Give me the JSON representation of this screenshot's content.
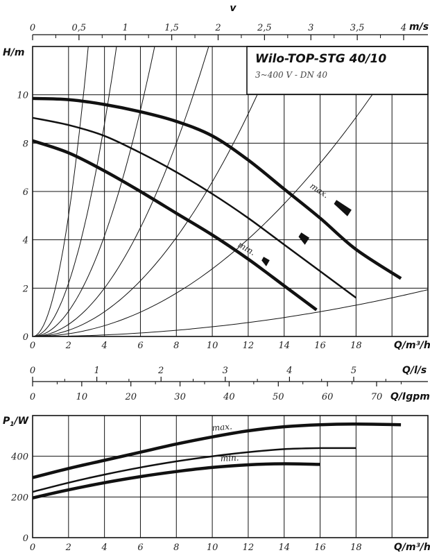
{
  "chart_data": [
    {
      "type": "line",
      "title": "Wilo-TOP-STG 40/10",
      "subtitle": "3~400 V - DN 40",
      "ylabel": "H/m",
      "xlabel": "Q/m³/h",
      "xlim": [
        0,
        22
      ],
      "ylim": [
        0,
        12
      ],
      "x_ticks": [
        "0",
        "2",
        "4",
        "6",
        "8",
        "10",
        "12",
        "14",
        "16",
        "18"
      ],
      "y_ticks": [
        "0",
        "2",
        "4",
        "6",
        "8",
        "10"
      ],
      "top_axis": {
        "label": "v",
        "unit": "m/s",
        "ticks": [
          "0",
          "0,5",
          "1",
          "1,5",
          "2",
          "2,5",
          "3",
          "3,5",
          "4"
        ],
        "values": [
          0,
          0.5,
          1,
          1.5,
          2,
          2.5,
          3,
          3.5,
          4
        ]
      },
      "series": [
        {
          "name": "max.",
          "x": [
            0,
            2,
            4,
            6,
            8,
            10,
            12,
            14,
            16,
            18,
            20.5
          ],
          "y": [
            9.85,
            9.8,
            9.6,
            9.3,
            8.9,
            8.3,
            7.3,
            6.1,
            4.9,
            3.6,
            2.4
          ]
        },
        {
          "name": "",
          "x": [
            0,
            2,
            4,
            6,
            8,
            10,
            12,
            14,
            16,
            18
          ],
          "y": [
            9.05,
            8.75,
            8.3,
            7.6,
            6.8,
            5.9,
            4.9,
            3.8,
            2.7,
            1.6
          ]
        },
        {
          "name": "min.",
          "x": [
            0,
            2,
            4,
            6,
            8,
            10,
            12,
            14,
            15.8
          ],
          "y": [
            8.1,
            7.6,
            6.85,
            6.0,
            5.1,
            4.2,
            3.2,
            2.1,
            1.1
          ]
        }
      ],
      "system_curves_k": [
        1.25,
        0.55,
        0.26,
        0.125,
        0.064,
        0.028,
        0.004
      ]
    },
    {
      "type": "axis",
      "axes": [
        {
          "unit": "Q/l/s",
          "ticks": [
            "0",
            "1",
            "2",
            "3",
            "4",
            "5"
          ],
          "values": [
            0,
            1,
            2,
            3,
            4,
            5
          ]
        },
        {
          "unit": "Q/Igpm",
          "ticks": [
            "0",
            "10",
            "20",
            "30",
            "40",
            "50",
            "60",
            "70"
          ],
          "values": [
            0,
            10,
            20,
            30,
            40,
            50,
            60,
            70
          ]
        }
      ]
    },
    {
      "type": "line",
      "ylabel": "P1/W",
      "xlabel": "Q/m³/h",
      "xlim": [
        0,
        22
      ],
      "ylim": [
        0,
        600
      ],
      "x_ticks": [
        "0",
        "2",
        "4",
        "6",
        "8",
        "10",
        "12",
        "14",
        "16",
        "18"
      ],
      "y_ticks": [
        "0",
        "200",
        "400"
      ],
      "series": [
        {
          "name": "max.",
          "x": [
            0,
            2,
            4,
            6,
            8,
            10,
            12,
            14,
            16,
            18,
            20.5
          ],
          "y": [
            295,
            340,
            380,
            420,
            460,
            495,
            525,
            545,
            555,
            558,
            555
          ]
        },
        {
          "name": "",
          "x": [
            0,
            2,
            4,
            6,
            8,
            10,
            12,
            14,
            16,
            18
          ],
          "y": [
            225,
            270,
            310,
            345,
            375,
            400,
            420,
            435,
            440,
            440
          ]
        },
        {
          "name": "min.",
          "x": [
            0,
            2,
            4,
            6,
            8,
            10,
            12,
            14,
            16
          ],
          "y": [
            195,
            235,
            270,
            300,
            325,
            345,
            358,
            363,
            360
          ]
        }
      ]
    }
  ]
}
